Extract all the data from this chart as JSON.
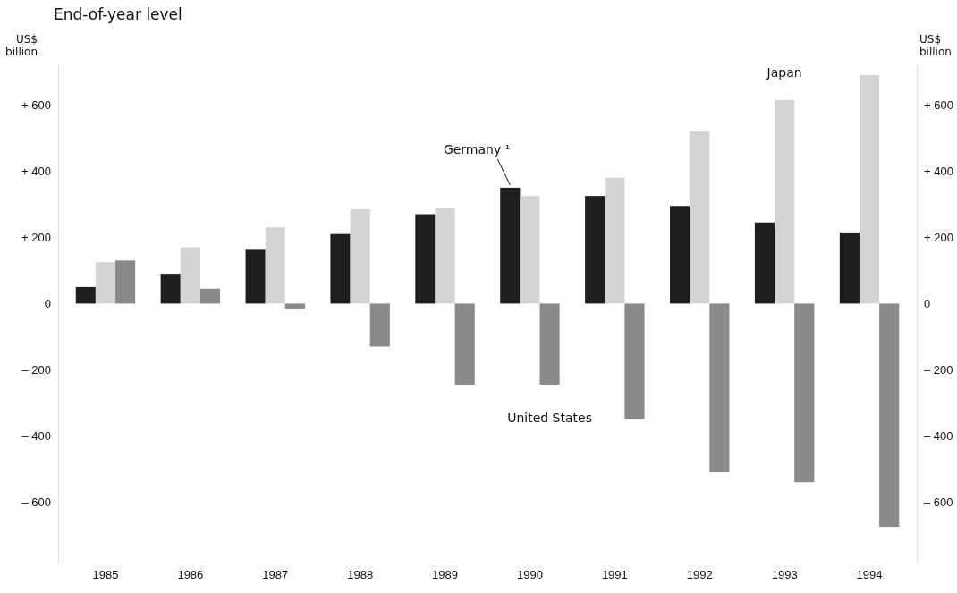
{
  "chart_data": {
    "type": "bar",
    "title": "End-of-year level",
    "ylabel": "US$ billion",
    "y2label": "US$ billion",
    "categories": [
      "1985",
      "1986",
      "1987",
      "1988",
      "1989",
      "1990",
      "1991",
      "1992",
      "1993",
      "1994"
    ],
    "series": [
      {
        "name": "Germany ¹",
        "color": "#1e1e1e",
        "values": [
          50,
          90,
          165,
          210,
          270,
          350,
          325,
          295,
          245,
          215
        ]
      },
      {
        "name": "Japan",
        "color": "#d4d4d4",
        "values": [
          125,
          170,
          230,
          285,
          290,
          325,
          380,
          520,
          615,
          690
        ]
      },
      {
        "name": "United States",
        "color": "#8a8a8a",
        "values": [
          130,
          45,
          -15,
          -130,
          -245,
          -245,
          -350,
          -510,
          -540,
          -675
        ]
      }
    ],
    "ylim": [
      -780,
      720
    ],
    "yticks": [
      {
        "value": 600,
        "label": "+ 600"
      },
      {
        "value": 400,
        "label": "+ 400"
      },
      {
        "value": 200,
        "label": "+ 200"
      },
      0,
      {
        "value": -200,
        "label": "– 200"
      },
      {
        "value": -400,
        "label": "– 400"
      },
      {
        "value": -600,
        "label": "– 600"
      }
    ],
    "y2lim": [
      -780,
      720
    ],
    "y2ticks": [
      {
        "value": 600,
        "label": "+ 600"
      },
      {
        "value": 400,
        "label": "+ 400"
      },
      {
        "value": 200,
        "label": "+ 200"
      },
      0,
      {
        "value": -200,
        "label": "– 200"
      },
      {
        "value": -400,
        "label": "– 400"
      },
      {
        "value": -600,
        "label": "– 600"
      }
    ],
    "grid": false
  }
}
